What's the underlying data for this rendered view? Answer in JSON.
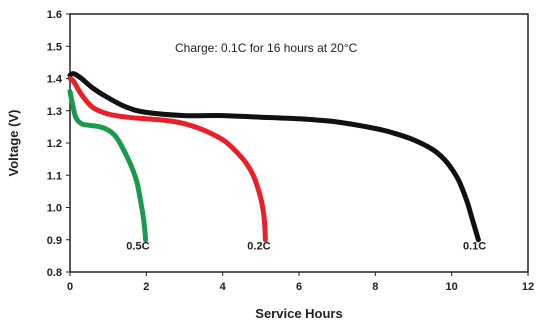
{
  "chart_data": {
    "type": "line",
    "title": "",
    "xlabel": "Service Hours",
    "ylabel": "Voltage (V)",
    "xlim": [
      0,
      12
    ],
    "ylim": [
      0.8,
      1.6
    ],
    "x_ticks": [
      "0",
      "2",
      "4",
      "6",
      "8",
      "10",
      "12"
    ],
    "y_ticks": [
      "0.8",
      "0.9",
      "1.0",
      "1.1",
      "1.2",
      "1.3",
      "1.4",
      "1.5",
      "1.6"
    ],
    "grid": false,
    "annotation": "Charge: 0.1C for 16 hours at 20°C",
    "series": [
      {
        "name": "0.1C",
        "color": "#111111",
        "x": [
          0,
          0.1,
          0.3,
          0.6,
          1,
          1.5,
          2,
          3,
          4,
          5,
          6,
          7,
          8,
          8.5,
          9,
          9.5,
          9.8,
          10,
          10.2,
          10.4,
          10.5,
          10.6,
          10.65,
          10.7
        ],
        "y": [
          1.41,
          1.415,
          1.4,
          1.37,
          1.34,
          1.31,
          1.295,
          1.285,
          1.285,
          1.28,
          1.275,
          1.265,
          1.245,
          1.23,
          1.21,
          1.18,
          1.15,
          1.12,
          1.08,
          1.02,
          0.98,
          0.94,
          0.92,
          0.9
        ]
      },
      {
        "name": "0.2C",
        "color": "#e8202a",
        "x": [
          0,
          0.1,
          0.3,
          0.6,
          1,
          1.5,
          2,
          2.5,
          3,
          3.5,
          4,
          4.3,
          4.6,
          4.8,
          4.95,
          5.05,
          5.1,
          5.12
        ],
        "y": [
          1.4,
          1.39,
          1.35,
          1.31,
          1.29,
          1.28,
          1.275,
          1.27,
          1.26,
          1.24,
          1.21,
          1.18,
          1.14,
          1.1,
          1.05,
          1.0,
          0.95,
          0.9
        ]
      },
      {
        "name": "0.5C",
        "color": "#1a9a4a",
        "x": [
          0,
          0.05,
          0.15,
          0.3,
          0.5,
          0.8,
          1,
          1.2,
          1.4,
          1.6,
          1.75,
          1.85,
          1.92,
          1.96,
          1.98
        ],
        "y": [
          1.36,
          1.33,
          1.28,
          1.26,
          1.255,
          1.25,
          1.24,
          1.22,
          1.18,
          1.13,
          1.08,
          1.02,
          0.97,
          0.93,
          0.9
        ]
      }
    ],
    "curve_labels": [
      {
        "text": "0.5C",
        "x": 1.78,
        "y": 0.87
      },
      {
        "text": "0.2C",
        "x": 4.95,
        "y": 0.87
      },
      {
        "text": "0.1C",
        "x": 10.6,
        "y": 0.87
      }
    ]
  }
}
